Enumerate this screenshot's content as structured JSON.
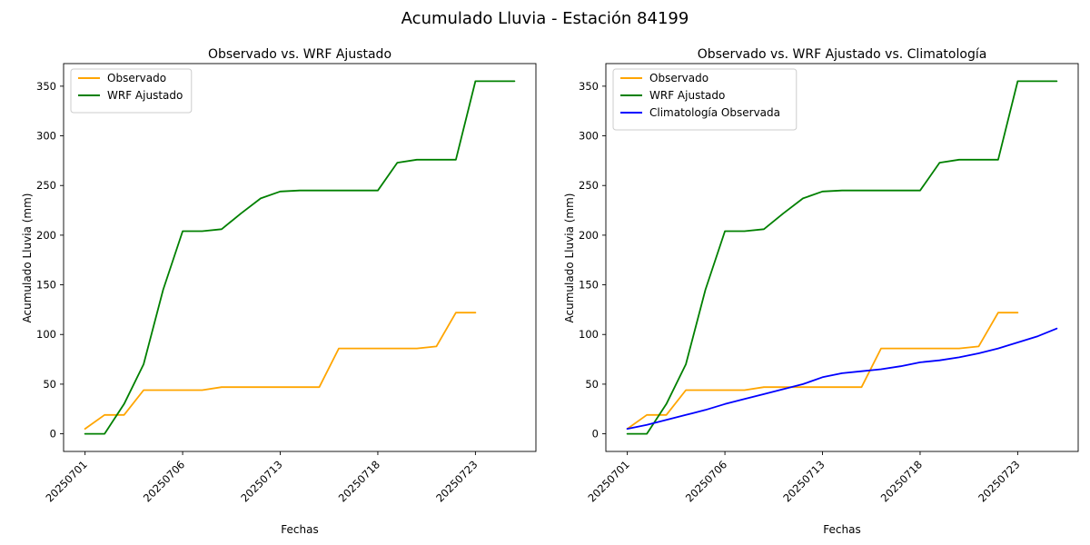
{
  "figure": {
    "title": "Acumulado Lluvia - Estación 84199",
    "background": "#ffffff",
    "text_color": "#000000"
  },
  "chart_data": [
    {
      "type": "line",
      "title": "Observado vs. WRF Ajustado",
      "xlabel": "Fechas",
      "ylabel": "Acumulado Lluvia (mm)",
      "ylim": [
        -17.75,
        372.75
      ],
      "yticks": [
        0,
        50,
        100,
        150,
        200,
        250,
        300,
        350
      ],
      "x_count": 23,
      "xticks": [
        {
          "pos": 0,
          "label": "20250701"
        },
        {
          "pos": 5,
          "label": "20250706"
        },
        {
          "pos": 10,
          "label": "20250713"
        },
        {
          "pos": 15,
          "label": "20250718"
        },
        {
          "pos": 20,
          "label": "20250723"
        }
      ],
      "grid": false,
      "legend_position": "upper left",
      "series": [
        {
          "name": "Observado",
          "color": "#FFA500",
          "values": [
            5,
            19,
            19,
            44,
            44,
            44,
            44,
            47,
            47,
            47,
            47,
            47,
            47,
            86,
            86,
            86,
            86,
            86,
            88,
            122,
            122,
            null,
            null
          ]
        },
        {
          "name": "WRF Ajustado",
          "color": "#008000",
          "values": [
            0,
            0,
            30,
            70,
            145,
            204,
            204,
            206,
            222,
            237,
            244,
            245,
            245,
            245,
            245,
            245,
            273,
            276,
            276,
            276,
            355,
            355,
            355
          ]
        }
      ]
    },
    {
      "type": "line",
      "title": "Observado vs. WRF Ajustado vs. Climatología",
      "xlabel": "Fechas",
      "ylabel": "Acumulado Lluvia (mm)",
      "ylim": [
        -17.75,
        372.75
      ],
      "yticks": [
        0,
        50,
        100,
        150,
        200,
        250,
        300,
        350
      ],
      "x_count": 23,
      "xticks": [
        {
          "pos": 0,
          "label": "20250701"
        },
        {
          "pos": 5,
          "label": "20250706"
        },
        {
          "pos": 10,
          "label": "20250713"
        },
        {
          "pos": 15,
          "label": "20250718"
        },
        {
          "pos": 20,
          "label": "20250723"
        }
      ],
      "grid": false,
      "legend_position": "upper left",
      "series": [
        {
          "name": "Observado",
          "color": "#FFA500",
          "values": [
            5,
            19,
            19,
            44,
            44,
            44,
            44,
            47,
            47,
            47,
            47,
            47,
            47,
            86,
            86,
            86,
            86,
            86,
            88,
            122,
            122,
            null,
            null
          ]
        },
        {
          "name": "WRF Ajustado",
          "color": "#008000",
          "values": [
            0,
            0,
            30,
            70,
            145,
            204,
            204,
            206,
            222,
            237,
            244,
            245,
            245,
            245,
            245,
            245,
            273,
            276,
            276,
            276,
            355,
            355,
            355
          ]
        },
        {
          "name": "Climatología Observada",
          "color": "#0000FF",
          "values": [
            5,
            9,
            14,
            19,
            24,
            30,
            35,
            40,
            45,
            50,
            57,
            61,
            63,
            65,
            68,
            72,
            74,
            77,
            81,
            86,
            92,
            98,
            106
          ]
        }
      ]
    }
  ]
}
